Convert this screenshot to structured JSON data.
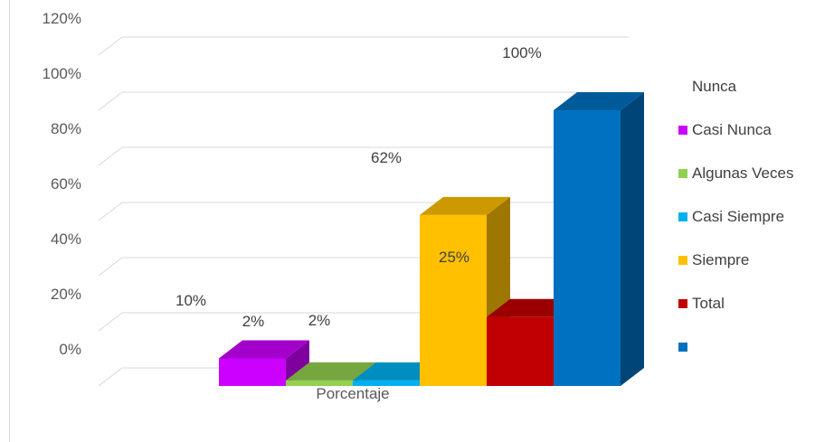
{
  "chart_data": {
    "type": "bar",
    "categories": [
      "Porcentaje"
    ],
    "series": [
      {
        "name": "Nunca",
        "values": [
          0
        ],
        "label": "",
        "color": "#ffffff"
      },
      {
        "name": "Casi Nunca",
        "values": [
          10
        ],
        "label": "10%",
        "color": "#cc00ff"
      },
      {
        "name": "Algunas Veces",
        "values": [
          2
        ],
        "label": "2%",
        "color": "#92d050"
      },
      {
        "name": "Casi Siempre",
        "values": [
          2
        ],
        "label": "2%",
        "color": "#00b0f0"
      },
      {
        "name": "Siempre",
        "values": [
          62
        ],
        "label": "62%",
        "color": "#ffc000"
      },
      {
        "name": "Total",
        "values": [
          25
        ],
        "label": "25%",
        "color": "#c00000"
      },
      {
        "name": "",
        "values": [
          100
        ],
        "label": "100%",
        "color": "#0070c0"
      }
    ],
    "y_ticks": [
      "0%",
      "20%",
      "40%",
      "60%",
      "80%",
      "100%",
      "120%"
    ],
    "ylim": [
      0,
      120
    ],
    "title": "",
    "xlabel": "",
    "ylabel": "",
    "grid": true,
    "legend_position": "right",
    "style": "3d-clustered-column"
  }
}
